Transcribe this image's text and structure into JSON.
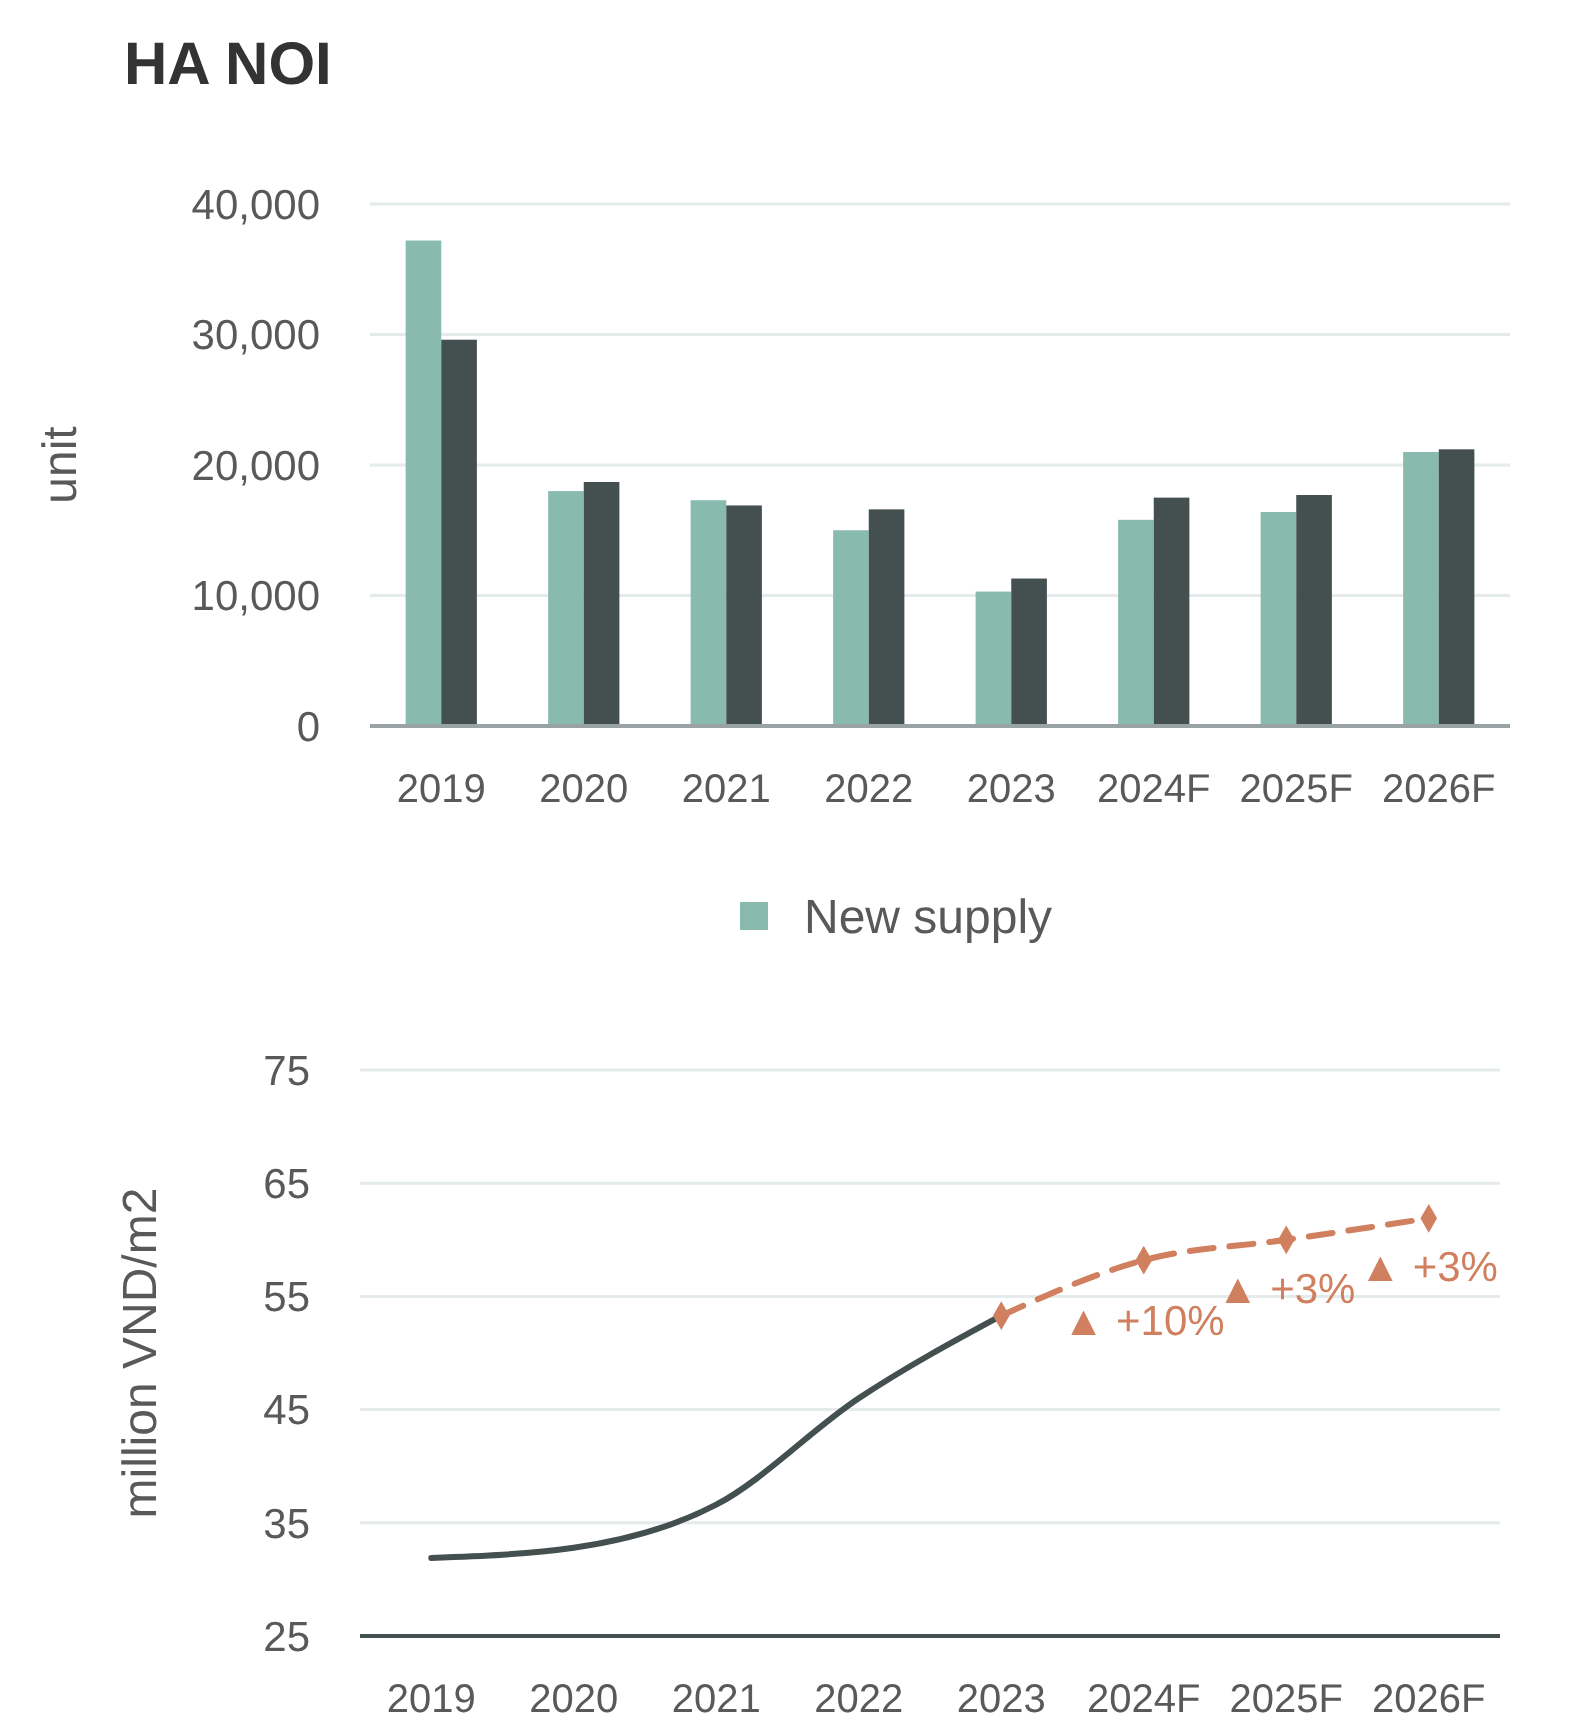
{
  "chart_data": [
    {
      "type": "bar",
      "title": "HA NOI",
      "ylabel": "unit",
      "categories": [
        "2019",
        "2020",
        "2021",
        "2022",
        "2023",
        "2024F",
        "2025F",
        "2026F"
      ],
      "series": [
        {
          "name": "New supply",
          "color": "#88bbad",
          "values": [
            37200,
            18000,
            17300,
            15000,
            10300,
            15800,
            16400,
            21000
          ]
        },
        {
          "color": "#44504f",
          "values": [
            29600,
            18700,
            16900,
            16600,
            11300,
            17500,
            17700,
            21200
          ]
        }
      ],
      "ylim": [
        0,
        40000
      ],
      "yticks": [
        0,
        {
          "value": 10000,
          "label": "10,000"
        },
        {
          "value": 20000,
          "label": "20,000"
        },
        {
          "value": 30000,
          "label": "30,000"
        },
        {
          "value": 40000,
          "label": "40,000"
        }
      ],
      "grid": "y",
      "legend": "bottom"
    },
    {
      "type": "line",
      "ylabel": "million VND/m2",
      "categories": [
        "2019",
        "2020",
        "2021",
        "2022",
        "2023",
        "2024F",
        "2025F",
        "2026F"
      ],
      "series": [
        {
          "color": "#44504f",
          "values": [
            31.9,
            32.8,
            36.6,
            46.0,
            53.3,
            null,
            null,
            null
          ],
          "line_style": "solid",
          "marker": "none"
        },
        {
          "color": "#d0805f",
          "values": [
            null,
            null,
            null,
            null,
            53.3,
            58.2,
            60.0,
            61.9
          ],
          "line_style": "dashed",
          "marker": "diamond"
        }
      ],
      "ylim": [
        25,
        75
      ],
      "yticks": [
        25,
        35,
        45,
        55,
        65,
        75
      ],
      "grid": "y",
      "legend": false,
      "annotations": [
        "▲ +10%",
        "▲ +3%",
        "▲ +3%"
      ]
    }
  ]
}
